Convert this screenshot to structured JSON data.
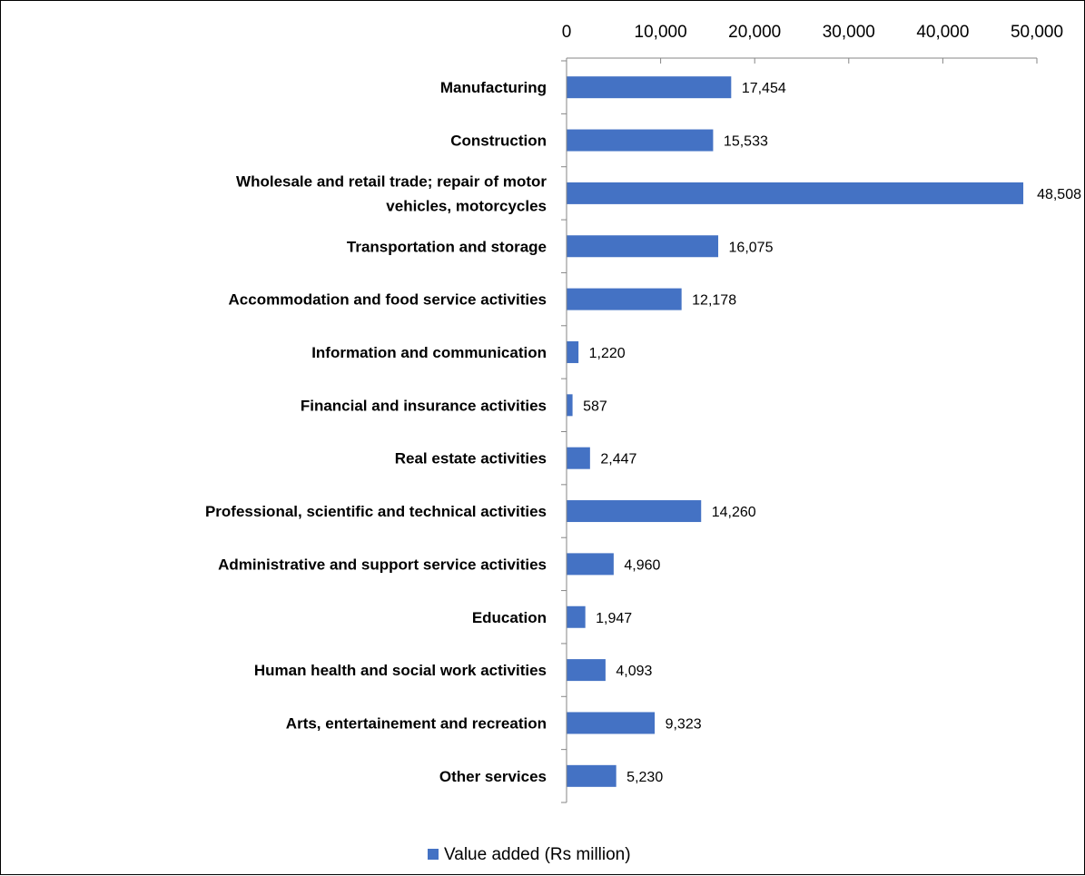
{
  "chart_data": {
    "type": "bar",
    "orientation": "horizontal",
    "categories": [
      [
        "Manufacturing"
      ],
      [
        "Construction"
      ],
      [
        "Wholesale and retail trade; repair of motor",
        "vehicles, motorcycles"
      ],
      [
        "Transportation and storage"
      ],
      [
        "Accommodation and food service activities"
      ],
      [
        "Information and communication"
      ],
      [
        "Financial and insurance activities"
      ],
      [
        "Real estate activities"
      ],
      [
        "Professional, scientific and technical activities"
      ],
      [
        "Administrative and support service activities"
      ],
      [
        "Education"
      ],
      [
        "Human health and social work activities"
      ],
      [
        "Arts, entertainement and recreation"
      ],
      [
        "Other services"
      ]
    ],
    "series": [
      {
        "name": "Value added (Rs million)",
        "color": "#4472C4",
        "values": [
          17454,
          15533,
          48508,
          16075,
          12178,
          1220,
          587,
          2447,
          14260,
          4960,
          1947,
          4093,
          9323,
          5230
        ],
        "labels": [
          "17,454",
          "15,533",
          "48,508",
          "16,075",
          "12,178",
          "1,220",
          "587",
          "2,447",
          "14,260",
          "4,960",
          "1,947",
          "4,093",
          "9,323",
          "5,230"
        ]
      }
    ],
    "xlim": [
      0,
      50000
    ],
    "xticks": [
      0,
      10000,
      20000,
      30000,
      40000,
      50000
    ],
    "xtick_labels": [
      "0",
      "10,000",
      "20,000",
      "30,000",
      "40,000",
      "50,000"
    ],
    "x_axis_position": "top",
    "grid": false,
    "legend_position": "bottom"
  }
}
